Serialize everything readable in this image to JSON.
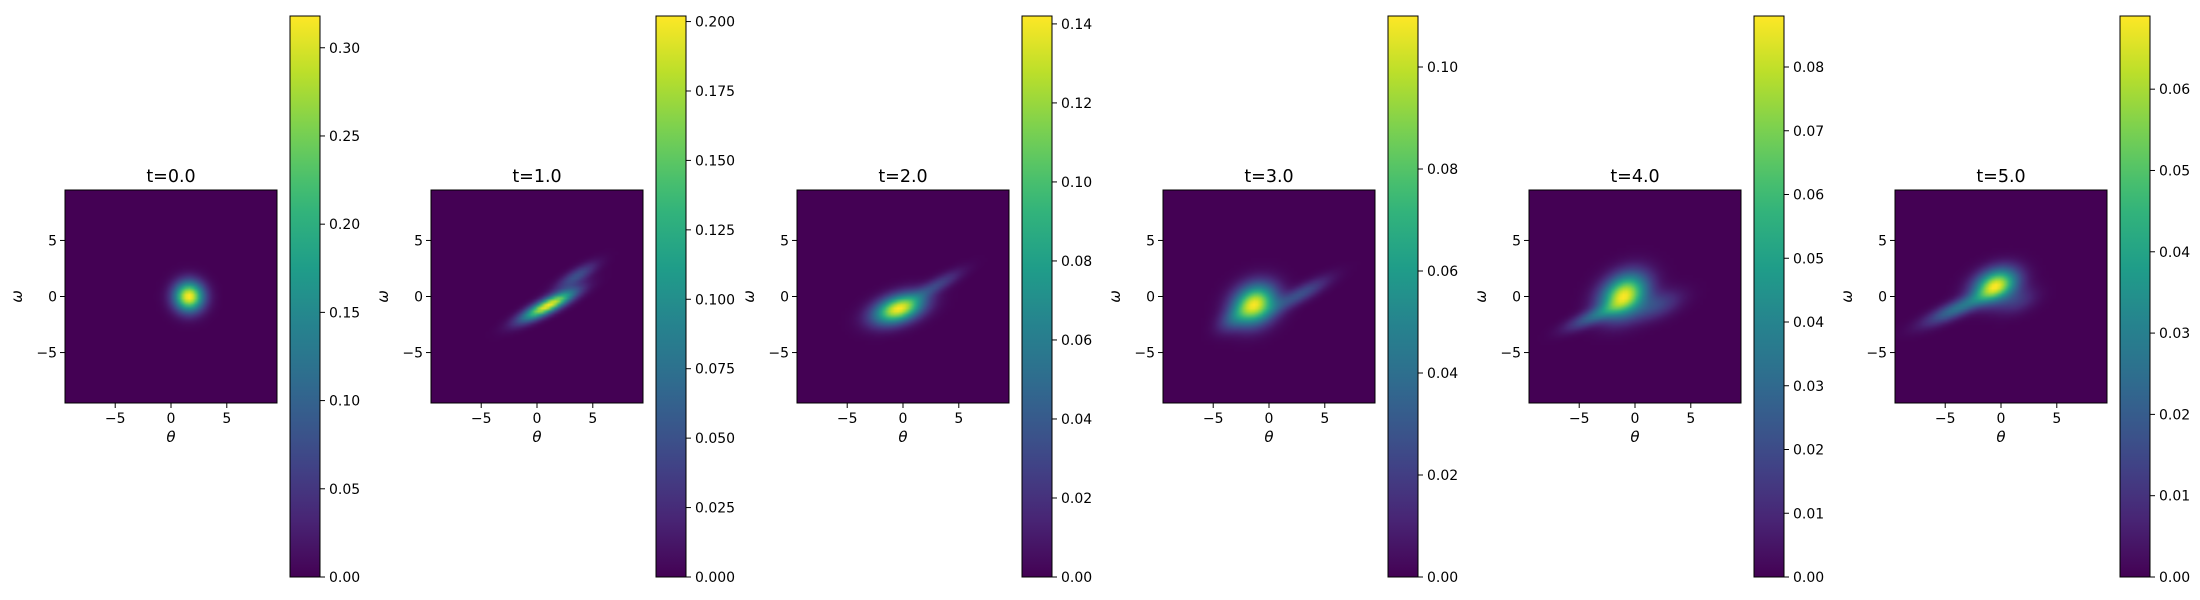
{
  "chart_data": [
    {
      "type": "heatmap",
      "title": "t=0.0",
      "xlabel": "θ",
      "ylabel": "ω",
      "xlim": [
        -9.5,
        9.5
      ],
      "ylim": [
        -9.5,
        9.5
      ],
      "xticks": [
        "−5",
        "0",
        "5"
      ],
      "yticks": [
        "5",
        "0",
        "−5"
      ],
      "colorbar": {
        "min": 0,
        "max": 0.318,
        "ticks": [
          "0.00",
          "0.05",
          "0.10",
          "0.15",
          "0.20",
          "0.25",
          "0.30"
        ]
      },
      "blobs": [
        {
          "x": 1.6,
          "y": 0.0,
          "sx": 0.9,
          "sy": 0.9,
          "rho": 0.0,
          "w": 1.0
        }
      ]
    },
    {
      "type": "heatmap",
      "title": "t=1.0",
      "xlabel": "θ",
      "ylabel": "ω",
      "xlim": [
        -9.5,
        9.5
      ],
      "ylim": [
        -9.5,
        9.5
      ],
      "xticks": [
        "−5",
        "0",
        "5"
      ],
      "yticks": [
        "5",
        "0",
        "−5"
      ],
      "colorbar": {
        "min": 0,
        "max": 0.202,
        "ticks": [
          "0.000",
          "0.025",
          "0.050",
          "0.075",
          "0.100",
          "0.125",
          "0.150",
          "0.175",
          "0.200"
        ]
      },
      "blobs": [
        {
          "x": 1.0,
          "y": -0.8,
          "sx": 1.6,
          "sy": 0.9,
          "rho": 0.85,
          "w": 1.0
        },
        {
          "x": 3.5,
          "y": 1.8,
          "sx": 1.2,
          "sy": 0.8,
          "rho": 0.8,
          "w": 0.25
        }
      ]
    },
    {
      "type": "heatmap",
      "title": "t=2.0",
      "xlabel": "θ",
      "ylabel": "ω",
      "xlim": [
        -9.5,
        9.5
      ],
      "ylim": [
        -9.5,
        9.5
      ],
      "xticks": [
        "−5",
        "0",
        "5"
      ],
      "yticks": [
        "5",
        "0",
        "−5"
      ],
      "colorbar": {
        "min": 0,
        "max": 0.142,
        "ticks": [
          "0.00",
          "0.02",
          "0.04",
          "0.06",
          "0.08",
          "0.10",
          "0.12",
          "0.14"
        ]
      },
      "blobs": [
        {
          "x": -0.4,
          "y": -1.1,
          "sx": 1.5,
          "sy": 0.9,
          "rho": 0.4,
          "w": 1.0
        },
        {
          "x": 3.0,
          "y": 1.0,
          "sx": 1.5,
          "sy": 0.9,
          "rho": 0.85,
          "w": 0.2
        }
      ]
    },
    {
      "type": "heatmap",
      "title": "t=3.0",
      "xlabel": "θ",
      "ylabel": "ω",
      "xlim": [
        -9.5,
        9.5
      ],
      "ylim": [
        -9.5,
        9.5
      ],
      "xticks": [
        "−5",
        "0",
        "5"
      ],
      "yticks": [
        "5",
        "0",
        "−5"
      ],
      "colorbar": {
        "min": 0,
        "max": 0.11,
        "ticks": [
          "0.00",
          "0.02",
          "0.04",
          "0.06",
          "0.08",
          "0.10"
        ]
      },
      "blobs": [
        {
          "x": -1.3,
          "y": -0.7,
          "sx": 1.3,
          "sy": 1.2,
          "rho": 0.2,
          "w": 1.0
        },
        {
          "x": 2.8,
          "y": 0.2,
          "sx": 1.7,
          "sy": 1.0,
          "rho": 0.85,
          "w": 0.25
        },
        {
          "x": -3.2,
          "y": -2.0,
          "sx": 1.0,
          "sy": 0.8,
          "rho": 0.5,
          "w": 0.2
        }
      ]
    },
    {
      "type": "heatmap",
      "title": "t=4.0",
      "xlabel": "θ",
      "ylabel": "ω",
      "xlim": [
        -9.5,
        9.5
      ],
      "ylim": [
        -9.5,
        9.5
      ],
      "xticks": [
        "−5",
        "0",
        "5"
      ],
      "yticks": [
        "5",
        "0",
        "−5"
      ],
      "colorbar": {
        "min": 0,
        "max": 0.088,
        "ticks": [
          "0.00",
          "0.01",
          "0.02",
          "0.03",
          "0.04",
          "0.05",
          "0.06",
          "0.07",
          "0.08"
        ]
      },
      "blobs": [
        {
          "x": -1.0,
          "y": 0.1,
          "sx": 1.4,
          "sy": 1.3,
          "rho": 0.3,
          "w": 1.0
        },
        {
          "x": -3.8,
          "y": -1.8,
          "sx": 1.6,
          "sy": 0.8,
          "rho": 0.8,
          "w": 0.3
        },
        {
          "x": 2.0,
          "y": -0.8,
          "sx": 1.5,
          "sy": 0.9,
          "rho": 0.5,
          "w": 0.2
        }
      ]
    },
    {
      "type": "heatmap",
      "title": "t=5.0",
      "xlabel": "θ",
      "ylabel": "ω",
      "xlim": [
        -9.5,
        9.5
      ],
      "ylim": [
        -9.5,
        9.5
      ],
      "xticks": [
        "−5",
        "0",
        "5"
      ],
      "yticks": [
        "5",
        "0",
        "−5"
      ],
      "colorbar": {
        "min": 0,
        "max": 0.069,
        "ticks": [
          "0.00",
          "0.01",
          "0.02",
          "0.03",
          "0.04",
          "0.05",
          "0.06"
        ]
      },
      "blobs": [
        {
          "x": -0.5,
          "y": 1.0,
          "sx": 1.3,
          "sy": 1.0,
          "rho": 0.3,
          "w": 1.0
        },
        {
          "x": -3.8,
          "y": -1.0,
          "sx": 2.0,
          "sy": 1.0,
          "rho": 0.85,
          "w": 0.4
        },
        {
          "x": 1.5,
          "y": -0.4,
          "sx": 1.2,
          "sy": 0.8,
          "rho": 0.4,
          "w": 0.15
        }
      ]
    }
  ]
}
